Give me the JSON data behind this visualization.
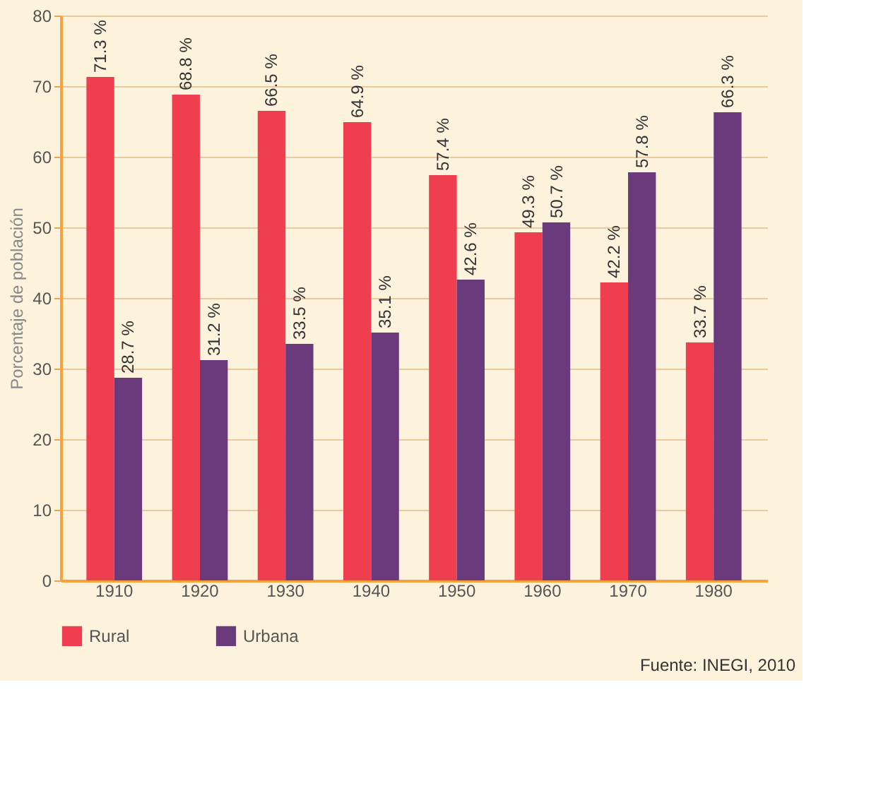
{
  "chart_data": {
    "type": "bar",
    "ylabel": "Porcentaje de población",
    "categories": [
      "1910",
      "1920",
      "1930",
      "1940",
      "1950",
      "1960",
      "1970",
      "1980"
    ],
    "series": [
      {
        "name": "Rural",
        "color": "#ee3e4f",
        "values": [
          71.3,
          68.8,
          66.5,
          64.9,
          57.4,
          49.3,
          42.2,
          33.7
        ],
        "value_labels": [
          "71.3 %",
          "68.8 %",
          "66.5 %",
          "64.9 %",
          "57.4 %",
          "49.3 %",
          "42.2 %",
          "33.7 %"
        ]
      },
      {
        "name": "Urbana",
        "color": "#6a3a7c",
        "values": [
          28.7,
          31.2,
          33.5,
          35.1,
          42.6,
          50.7,
          57.8,
          66.3
        ],
        "value_labels": [
          "28.7 %",
          "31.2 %",
          "33.5 %",
          "35.1 %",
          "42.6 %",
          "50.7 %",
          "57.8 %",
          "66.3 %"
        ]
      }
    ],
    "ylim": [
      0,
      80
    ],
    "yticks": [
      0,
      10,
      20,
      30,
      40,
      50,
      60,
      70,
      80
    ],
    "grid": "y",
    "legend": "bottom",
    "annotations": [
      "Fuente: INEGI, 2010"
    ]
  }
}
